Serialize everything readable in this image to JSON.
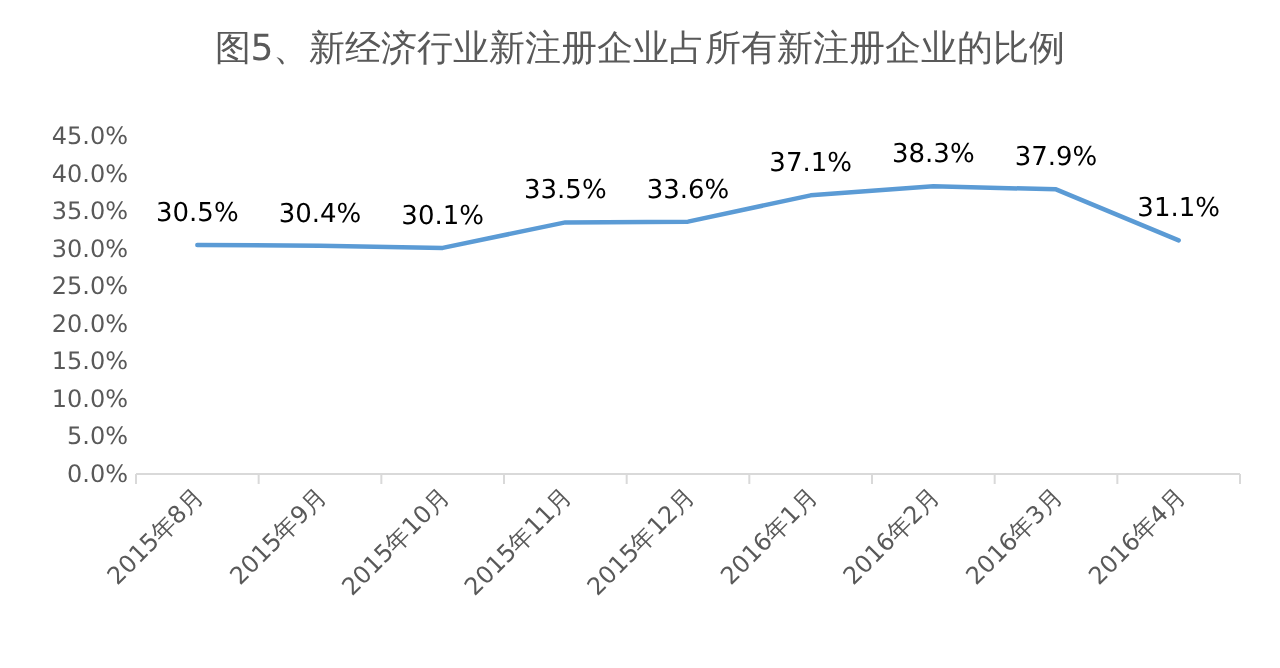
{
  "chart_data": {
    "type": "line",
    "title": "图5、新经济行业新注册企业占所有新注册企业的比例",
    "categories": [
      "2015年8月",
      "2015年9月",
      "2015年10月",
      "2015年11月",
      "2015年12月",
      "2016年1月",
      "2016年2月",
      "2016年3月",
      "2016年4月"
    ],
    "series": [
      {
        "color": "#5b9bd5",
        "values": [
          30.5,
          30.4,
          30.1,
          33.5,
          33.6,
          37.1,
          38.3,
          37.9,
          31.1
        ],
        "value_labels": [
          "30.5%",
          "30.4%",
          "30.1%",
          "33.5%",
          "33.6%",
          "37.1%",
          "38.3%",
          "37.9%",
          "31.1%"
        ]
      }
    ],
    "ylim": [
      0,
      45
    ],
    "yticks": [
      {
        "value": 0,
        "label": "0.0%"
      },
      {
        "value": 5,
        "label": "5.0%"
      },
      {
        "value": 10,
        "label": "10.0%"
      },
      {
        "value": 15,
        "label": "15.0%"
      },
      {
        "value": 20,
        "label": "20.0%"
      },
      {
        "value": 25,
        "label": "25.0%"
      },
      {
        "value": 30,
        "label": "30.0%"
      },
      {
        "value": 35,
        "label": "35.0%"
      },
      {
        "value": 40,
        "label": "40.0%"
      },
      {
        "value": 45,
        "label": "45.0%"
      }
    ],
    "line_style": "solid"
  }
}
